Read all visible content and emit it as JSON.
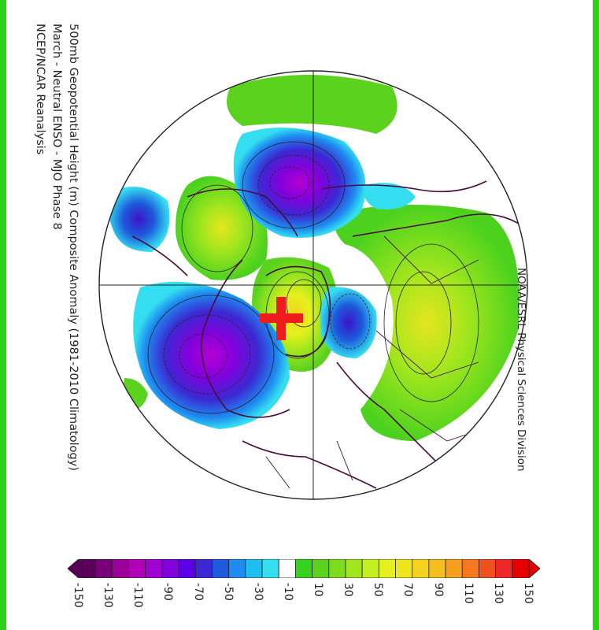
{
  "title_lines": [
    "500mb Geopotential Height (m) Composite Anomaly (1981-2010 Climatology)",
    "March - Neutral ENSO - MJO Phase 8",
    "NCEP/NCAR Reanalysis"
  ],
  "credit": "NOAA/ESRL Physical Sciences Division",
  "colorbar": {
    "labels": [
      "-150",
      "-130",
      "-110",
      "-90",
      "-70",
      "-50",
      "-30",
      "-10",
      "10",
      "30",
      "50",
      "70",
      "90",
      "110",
      "130",
      "150"
    ],
    "colors": [
      "#5a005a",
      "#7a007a",
      "#9b009b",
      "#b000b8",
      "#a000d2",
      "#8200dc",
      "#5c00e6",
      "#3c28d2",
      "#1e5adc",
      "#1e8cf0",
      "#1ebef0",
      "#34def0",
      "#ffffff",
      "#34d21e",
      "#5ad21e",
      "#7ddc1e",
      "#a0e61e",
      "#c3f01e",
      "#e6f01e",
      "#f0e61e",
      "#f5d21e",
      "#f5be1e",
      "#f5a01e",
      "#f5781e",
      "#f0501e",
      "#ee2828",
      "#e60000"
    ]
  },
  "map": {
    "marker": "red-plus-marker",
    "anomaly_centers": [
      {
        "sign": "negative",
        "region": "North Pacific / Aleutians",
        "approx_m": -130
      },
      {
        "sign": "negative",
        "region": "Eastern Siberia",
        "approx_m": -110
      },
      {
        "sign": "negative",
        "region": "Northwest Atlantic",
        "approx_m": -70
      },
      {
        "sign": "positive",
        "region": "Greenland",
        "approx_m": 90
      },
      {
        "sign": "positive",
        "region": "Alaska / Beaufort",
        "approx_m": 70
      },
      {
        "sign": "positive",
        "region": "Eastern Europe / Russia",
        "approx_m": 70
      }
    ]
  }
}
